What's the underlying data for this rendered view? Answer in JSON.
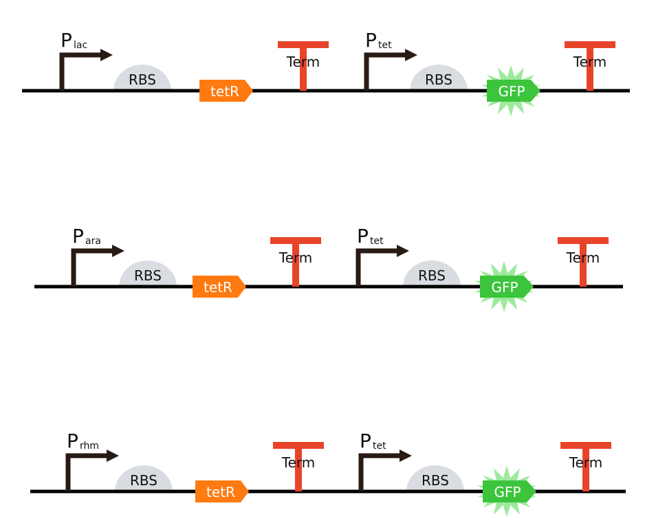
{
  "colors": {
    "backbone": "#000000",
    "promoter": "#2a1a14",
    "rbs": "#d9dde2",
    "tetR": "#ff7a10",
    "gfp": "#3cc43c",
    "gfp_glow": "#8ce68c",
    "terminator": "#e8442a"
  },
  "circuits": [
    {
      "promoter1": {
        "letter": "P",
        "subscript": "lac"
      },
      "rbs1": "RBS",
      "gene1": "tetR",
      "term1": "Term",
      "promoter2": {
        "letter": "P",
        "subscript": "tet"
      },
      "rbs2": "RBS",
      "gene2": "GFP",
      "term2": "Term"
    },
    {
      "promoter1": {
        "letter": "P",
        "subscript": "ara"
      },
      "rbs1": "RBS",
      "gene1": "tetR",
      "term1": "Term",
      "promoter2": {
        "letter": "P",
        "subscript": "tet"
      },
      "rbs2": "RBS",
      "gene2": "GFP",
      "term2": "Term"
    },
    {
      "promoter1": {
        "letter": "P",
        "subscript": "rhm"
      },
      "rbs1": "RBS",
      "gene1": "tetR",
      "term1": "Term",
      "promoter2": {
        "letter": "P",
        "subscript": "tet"
      },
      "rbs2": "RBS",
      "gene2": "GFP",
      "term2": "Term"
    }
  ]
}
